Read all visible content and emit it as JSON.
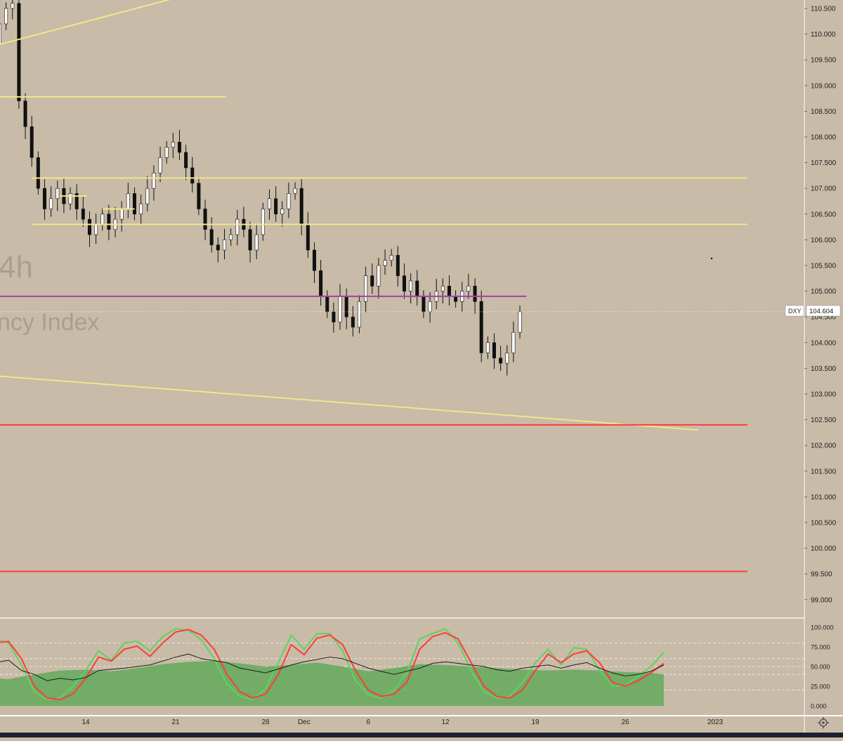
{
  "chart_data": [
    {
      "type": "candlestick",
      "watermark": {
        "interval": "4h",
        "name_fragment": "ncy Index"
      },
      "symbol": "DXY",
      "last_price": "104.604",
      "y_range": [
        98.75,
        110.75
      ],
      "y_ticks": [
        "110.500",
        "110.000",
        "109.500",
        "109.000",
        "108.500",
        "108.000",
        "107.500",
        "107.000",
        "106.500",
        "106.000",
        "105.500",
        "105.000",
        "104.500",
        "104.000",
        "103.500",
        "103.000",
        "102.500",
        "102.000",
        "101.500",
        "101.000",
        "100.500",
        "100.000",
        "99.500",
        "99.000"
      ],
      "x_ticks": [
        {
          "label": "14",
          "day": 14
        },
        {
          "label": "21",
          "day": 21
        },
        {
          "label": "28",
          "day": 28
        },
        {
          "label": "Dec",
          "day": 31
        },
        {
          "label": "6",
          "day": 36
        },
        {
          "label": "12",
          "day": 42
        },
        {
          "label": "19",
          "day": 49
        },
        {
          "label": "26",
          "day": 56
        },
        {
          "label": "2023",
          "day": 63
        }
      ],
      "price_path": [
        {
          "d": 5.2,
          "p": 110.4
        },
        {
          "d": 5.8,
          "p": 110.1
        },
        {
          "d": 6.3,
          "p": 110.2
        },
        {
          "d": 6.8,
          "p": 109.8
        },
        {
          "d": 7.3,
          "p": 110.2
        },
        {
          "d": 7.8,
          "p": 110.5
        },
        {
          "d": 8.3,
          "p": 110.6
        },
        {
          "d": 8.8,
          "p": 108.7
        },
        {
          "d": 9.3,
          "p": 108.2
        },
        {
          "d": 9.8,
          "p": 107.6
        },
        {
          "d": 10.3,
          "p": 107.0
        },
        {
          "d": 10.8,
          "p": 106.6
        },
        {
          "d": 11.3,
          "p": 106.8
        },
        {
          "d": 11.8,
          "p": 107.0
        },
        {
          "d": 12.3,
          "p": 106.7
        },
        {
          "d": 12.8,
          "p": 106.9
        },
        {
          "d": 13.3,
          "p": 106.6
        },
        {
          "d": 13.8,
          "p": 106.4
        },
        {
          "d": 14.3,
          "p": 106.1
        },
        {
          "d": 14.8,
          "p": 106.3
        },
        {
          "d": 15.3,
          "p": 106.5
        },
        {
          "d": 15.8,
          "p": 106.2
        },
        {
          "d": 16.3,
          "p": 106.4
        },
        {
          "d": 16.8,
          "p": 106.6
        },
        {
          "d": 17.3,
          "p": 106.9
        },
        {
          "d": 17.8,
          "p": 106.5
        },
        {
          "d": 18.3,
          "p": 106.7
        },
        {
          "d": 18.8,
          "p": 107.0
        },
        {
          "d": 19.3,
          "p": 107.3
        },
        {
          "d": 19.8,
          "p": 107.6
        },
        {
          "d": 20.3,
          "p": 107.8
        },
        {
          "d": 20.8,
          "p": 107.9
        },
        {
          "d": 21.3,
          "p": 107.7
        },
        {
          "d": 21.8,
          "p": 107.4
        },
        {
          "d": 22.3,
          "p": 107.1
        },
        {
          "d": 22.8,
          "p": 106.6
        },
        {
          "d": 23.3,
          "p": 106.2
        },
        {
          "d": 23.8,
          "p": 105.9
        },
        {
          "d": 24.3,
          "p": 105.8
        },
        {
          "d": 24.8,
          "p": 106.0
        },
        {
          "d": 25.3,
          "p": 106.1
        },
        {
          "d": 25.8,
          "p": 106.4
        },
        {
          "d": 26.3,
          "p": 106.2
        },
        {
          "d": 26.8,
          "p": 105.8
        },
        {
          "d": 27.3,
          "p": 106.1
        },
        {
          "d": 27.8,
          "p": 106.6
        },
        {
          "d": 28.3,
          "p": 106.8
        },
        {
          "d": 28.8,
          "p": 106.5
        },
        {
          "d": 29.3,
          "p": 106.6
        },
        {
          "d": 29.8,
          "p": 106.9
        },
        {
          "d": 30.3,
          "p": 107.0
        },
        {
          "d": 30.8,
          "p": 106.3
        },
        {
          "d": 31.3,
          "p": 105.8
        },
        {
          "d": 31.8,
          "p": 105.4
        },
        {
          "d": 32.3,
          "p": 104.9
        },
        {
          "d": 32.8,
          "p": 104.6
        },
        {
          "d": 33.3,
          "p": 104.4
        },
        {
          "d": 33.8,
          "p": 104.9
        },
        {
          "d": 34.3,
          "p": 104.5
        },
        {
          "d": 34.8,
          "p": 104.3
        },
        {
          "d": 35.3,
          "p": 104.8
        },
        {
          "d": 35.8,
          "p": 105.3
        },
        {
          "d": 36.3,
          "p": 105.1
        },
        {
          "d": 36.8,
          "p": 105.5
        },
        {
          "d": 37.3,
          "p": 105.6
        },
        {
          "d": 37.8,
          "p": 105.7
        },
        {
          "d": 38.3,
          "p": 105.3
        },
        {
          "d": 38.8,
          "p": 105.0
        },
        {
          "d": 39.3,
          "p": 105.2
        },
        {
          "d": 39.8,
          "p": 104.9
        },
        {
          "d": 40.3,
          "p": 104.6
        },
        {
          "d": 40.8,
          "p": 104.8
        },
        {
          "d": 41.3,
          "p": 105.0
        },
        {
          "d": 41.8,
          "p": 105.1
        },
        {
          "d": 42.3,
          "p": 104.9
        },
        {
          "d": 42.8,
          "p": 104.8
        },
        {
          "d": 43.3,
          "p": 105.0
        },
        {
          "d": 43.8,
          "p": 105.1
        },
        {
          "d": 44.3,
          "p": 104.8
        },
        {
          "d": 44.8,
          "p": 103.8
        },
        {
          "d": 45.3,
          "p": 104.0
        },
        {
          "d": 45.8,
          "p": 103.7
        },
        {
          "d": 46.3,
          "p": 103.6
        },
        {
          "d": 46.8,
          "p": 103.8
        },
        {
          "d": 47.3,
          "p": 104.2
        },
        {
          "d": 47.8,
          "p": 104.6
        }
      ],
      "trendlines": [
        {
          "color": "#f3e58d",
          "d1": 2.0,
          "p1": 109.45,
          "d2": 21.7,
          "p2": 110.75
        },
        {
          "color": "#f3e58d",
          "d1": 2.0,
          "p1": 103.45,
          "d2": 61.7,
          "p2": 102.3
        }
      ],
      "horizontal_lines": [
        {
          "color": "#f3e58d",
          "price": 108.78,
          "d1": 2.0,
          "d2": 24.9
        },
        {
          "color": "#f3e58d",
          "price": 107.2,
          "d1": 9.8,
          "d2": 65.5
        },
        {
          "color": "#f3e58d",
          "price": 106.3,
          "d1": 9.8,
          "d2": 65.5
        },
        {
          "color": "#f3e58d",
          "price": 110.1,
          "d1": 5.4,
          "d2": 7.4
        },
        {
          "color": "#f3e58d",
          "price": 106.85,
          "d1": 12.0,
          "d2": 14.1
        },
        {
          "color": "#f3e58d",
          "price": 106.6,
          "d1": 15.3,
          "d2": 17.8
        },
        {
          "color": "#a23fb0",
          "price": 104.9,
          "d1": 2.0,
          "d2": 48.3
        },
        {
          "color": "#ff3b3b",
          "price": 102.4,
          "d1": 2.0,
          "d2": 65.5
        },
        {
          "color": "#ff3b3b",
          "price": 99.55,
          "d1": 2.0,
          "d2": 65.5
        }
      ]
    },
    {
      "type": "oscillator",
      "y_range": [
        0,
        100
      ],
      "y_ticks": [
        "100.000",
        "75.000",
        "50.000",
        "25.000",
        "0.000"
      ],
      "levels": [
        80,
        60,
        50,
        40,
        20
      ],
      "fast_line_color": "#ff3b3b",
      "slow_line_color": "#5ed35e",
      "mid_line_color": "#1c1c1c",
      "area_color": "#63a95a",
      "fast": [
        {
          "d": 2,
          "v": 45
        },
        {
          "d": 3,
          "v": 38
        },
        {
          "d": 4,
          "v": 30
        },
        {
          "d": 5,
          "v": 20
        },
        {
          "d": 6,
          "v": 35
        },
        {
          "d": 7,
          "v": 80
        },
        {
          "d": 8,
          "v": 82
        },
        {
          "d": 9,
          "v": 60
        },
        {
          "d": 10,
          "v": 25
        },
        {
          "d": 11,
          "v": 10
        },
        {
          "d": 12,
          "v": 8
        },
        {
          "d": 13,
          "v": 15
        },
        {
          "d": 14,
          "v": 35
        },
        {
          "d": 15,
          "v": 62
        },
        {
          "d": 16,
          "v": 57
        },
        {
          "d": 17,
          "v": 72
        },
        {
          "d": 18,
          "v": 76
        },
        {
          "d": 19,
          "v": 63
        },
        {
          "d": 20,
          "v": 80
        },
        {
          "d": 21,
          "v": 94
        },
        {
          "d": 22,
          "v": 97
        },
        {
          "d": 23,
          "v": 90
        },
        {
          "d": 24,
          "v": 72
        },
        {
          "d": 25,
          "v": 40
        },
        {
          "d": 26,
          "v": 18
        },
        {
          "d": 27,
          "v": 10
        },
        {
          "d": 28,
          "v": 15
        },
        {
          "d": 29,
          "v": 40
        },
        {
          "d": 30,
          "v": 78
        },
        {
          "d": 31,
          "v": 65
        },
        {
          "d": 32,
          "v": 86
        },
        {
          "d": 33,
          "v": 90
        },
        {
          "d": 34,
          "v": 78
        },
        {
          "d": 35,
          "v": 45
        },
        {
          "d": 36,
          "v": 20
        },
        {
          "d": 37,
          "v": 12
        },
        {
          "d": 38,
          "v": 15
        },
        {
          "d": 39,
          "v": 30
        },
        {
          "d": 40,
          "v": 72
        },
        {
          "d": 41,
          "v": 88
        },
        {
          "d": 42,
          "v": 93
        },
        {
          "d": 43,
          "v": 85
        },
        {
          "d": 44,
          "v": 55
        },
        {
          "d": 45,
          "v": 25
        },
        {
          "d": 46,
          "v": 12
        },
        {
          "d": 47,
          "v": 10
        },
        {
          "d": 48,
          "v": 20
        },
        {
          "d": 49,
          "v": 45
        },
        {
          "d": 50,
          "v": 66
        },
        {
          "d": 51,
          "v": 55
        },
        {
          "d": 52,
          "v": 66
        },
        {
          "d": 53,
          "v": 70
        },
        {
          "d": 54,
          "v": 55
        },
        {
          "d": 55,
          "v": 30
        },
        {
          "d": 56,
          "v": 25
        },
        {
          "d": 57,
          "v": 32
        },
        {
          "d": 58,
          "v": 42
        },
        {
          "d": 59,
          "v": 54
        }
      ],
      "slow": [
        {
          "d": 2,
          "v": 48
        },
        {
          "d": 3,
          "v": 40
        },
        {
          "d": 4,
          "v": 32
        },
        {
          "d": 5,
          "v": 25
        },
        {
          "d": 6,
          "v": 45
        },
        {
          "d": 7,
          "v": 85
        },
        {
          "d": 8,
          "v": 80
        },
        {
          "d": 9,
          "v": 52
        },
        {
          "d": 10,
          "v": 18
        },
        {
          "d": 11,
          "v": 8
        },
        {
          "d": 12,
          "v": 10
        },
        {
          "d": 13,
          "v": 25
        },
        {
          "d": 14,
          "v": 45
        },
        {
          "d": 15,
          "v": 70
        },
        {
          "d": 16,
          "v": 58
        },
        {
          "d": 17,
          "v": 80
        },
        {
          "d": 18,
          "v": 82
        },
        {
          "d": 19,
          "v": 70
        },
        {
          "d": 20,
          "v": 88
        },
        {
          "d": 21,
          "v": 98
        },
        {
          "d": 22,
          "v": 96
        },
        {
          "d": 23,
          "v": 84
        },
        {
          "d": 24,
          "v": 60
        },
        {
          "d": 25,
          "v": 28
        },
        {
          "d": 26,
          "v": 12
        },
        {
          "d": 27,
          "v": 8
        },
        {
          "d": 28,
          "v": 22
        },
        {
          "d": 29,
          "v": 55
        },
        {
          "d": 30,
          "v": 90
        },
        {
          "d": 31,
          "v": 72
        },
        {
          "d": 32,
          "v": 92
        },
        {
          "d": 33,
          "v": 92
        },
        {
          "d": 34,
          "v": 70
        },
        {
          "d": 35,
          "v": 32
        },
        {
          "d": 36,
          "v": 14
        },
        {
          "d": 37,
          "v": 10
        },
        {
          "d": 38,
          "v": 20
        },
        {
          "d": 39,
          "v": 42
        },
        {
          "d": 40,
          "v": 85
        },
        {
          "d": 41,
          "v": 92
        },
        {
          "d": 42,
          "v": 98
        },
        {
          "d": 43,
          "v": 80
        },
        {
          "d": 44,
          "v": 45
        },
        {
          "d": 45,
          "v": 18
        },
        {
          "d": 46,
          "v": 10
        },
        {
          "d": 47,
          "v": 12
        },
        {
          "d": 48,
          "v": 30
        },
        {
          "d": 49,
          "v": 55
        },
        {
          "d": 50,
          "v": 72
        },
        {
          "d": 51,
          "v": 52
        },
        {
          "d": 52,
          "v": 74
        },
        {
          "d": 53,
          "v": 72
        },
        {
          "d": 54,
          "v": 45
        },
        {
          "d": 55,
          "v": 25
        },
        {
          "d": 56,
          "v": 26
        },
        {
          "d": 57,
          "v": 38
        },
        {
          "d": 58,
          "v": 50
        },
        {
          "d": 59,
          "v": 68
        }
      ],
      "mid": [
        {
          "d": 2,
          "v": 42
        },
        {
          "d": 4,
          "v": 38
        },
        {
          "d": 6,
          "v": 40
        },
        {
          "d": 7,
          "v": 55
        },
        {
          "d": 8,
          "v": 58
        },
        {
          "d": 9,
          "v": 45
        },
        {
          "d": 10,
          "v": 40
        },
        {
          "d": 11,
          "v": 32
        },
        {
          "d": 12,
          "v": 35
        },
        {
          "d": 13,
          "v": 33
        },
        {
          "d": 14,
          "v": 36
        },
        {
          "d": 15,
          "v": 45
        },
        {
          "d": 17,
          "v": 48
        },
        {
          "d": 19,
          "v": 52
        },
        {
          "d": 21,
          "v": 62
        },
        {
          "d": 22,
          "v": 66
        },
        {
          "d": 23,
          "v": 60
        },
        {
          "d": 25,
          "v": 55
        },
        {
          "d": 26,
          "v": 48
        },
        {
          "d": 28,
          "v": 42
        },
        {
          "d": 30,
          "v": 52
        },
        {
          "d": 31,
          "v": 56
        },
        {
          "d": 33,
          "v": 62
        },
        {
          "d": 34,
          "v": 60
        },
        {
          "d": 36,
          "v": 48
        },
        {
          "d": 37,
          "v": 44
        },
        {
          "d": 38,
          "v": 40
        },
        {
          "d": 40,
          "v": 48
        },
        {
          "d": 41,
          "v": 54
        },
        {
          "d": 42,
          "v": 56
        },
        {
          "d": 43,
          "v": 54
        },
        {
          "d": 45,
          "v": 50
        },
        {
          "d": 46,
          "v": 46
        },
        {
          "d": 47,
          "v": 44
        },
        {
          "d": 48,
          "v": 48
        },
        {
          "d": 50,
          "v": 52
        },
        {
          "d": 51,
          "v": 48
        },
        {
          "d": 52,
          "v": 52
        },
        {
          "d": 53,
          "v": 55
        },
        {
          "d": 54,
          "v": 48
        },
        {
          "d": 55,
          "v": 42
        },
        {
          "d": 56,
          "v": 38
        },
        {
          "d": 57,
          "v": 40
        },
        {
          "d": 58,
          "v": 44
        },
        {
          "d": 59,
          "v": 52
        }
      ],
      "area": [
        {
          "d": 2,
          "v": 45
        },
        {
          "d": 4,
          "v": 40
        },
        {
          "d": 6,
          "v": 36
        },
        {
          "d": 8,
          "v": 34
        },
        {
          "d": 10,
          "v": 40
        },
        {
          "d": 12,
          "v": 45
        },
        {
          "d": 14,
          "v": 46
        },
        {
          "d": 16,
          "v": 44
        },
        {
          "d": 18,
          "v": 48
        },
        {
          "d": 20,
          "v": 53
        },
        {
          "d": 22,
          "v": 56
        },
        {
          "d": 24,
          "v": 57
        },
        {
          "d": 26,
          "v": 54
        },
        {
          "d": 28,
          "v": 50
        },
        {
          "d": 30,
          "v": 52
        },
        {
          "d": 32,
          "v": 55
        },
        {
          "d": 34,
          "v": 50
        },
        {
          "d": 36,
          "v": 44
        },
        {
          "d": 38,
          "v": 48
        },
        {
          "d": 40,
          "v": 53
        },
        {
          "d": 42,
          "v": 52
        },
        {
          "d": 44,
          "v": 50
        },
        {
          "d": 46,
          "v": 48
        },
        {
          "d": 48,
          "v": 46
        },
        {
          "d": 50,
          "v": 45
        },
        {
          "d": 52,
          "v": 46
        },
        {
          "d": 54,
          "v": 45
        },
        {
          "d": 56,
          "v": 43
        },
        {
          "d": 58,
          "v": 42
        },
        {
          "d": 59,
          "v": 40
        }
      ]
    }
  ]
}
